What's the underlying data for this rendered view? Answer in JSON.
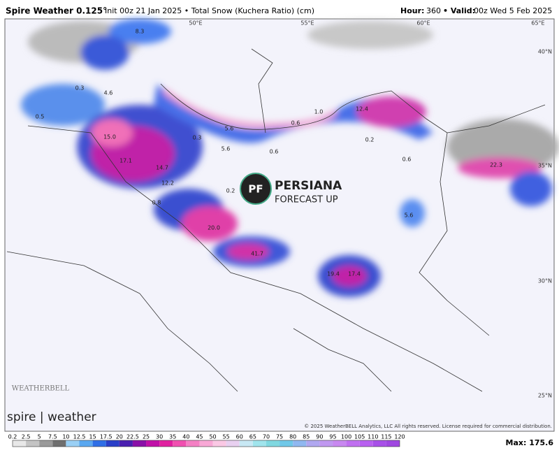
{
  "header": {
    "model": "Spire Weather 0.125°",
    "init": "Init 00z 21 Jan 2025 • Total Snow (Kuchera Ratio) (cm)",
    "hour_label": "Hour:",
    "hour": "360",
    "valid_label": "• Valid:",
    "valid": "00z Wed 5 Feb 2025"
  },
  "map": {
    "lon_labels": [
      "50°E",
      "55°E",
      "60°E",
      "65°E"
    ],
    "lat_labels": [
      "40°N",
      "35°N",
      "30°N",
      "25°N"
    ],
    "value_labels": [
      "8.3",
      "4.6",
      "0.3",
      "0.5",
      "15.0",
      "17.1",
      "14.7",
      "12.2",
      "0.3",
      "5.6",
      "5.6",
      "0.6",
      "0.6",
      "1.0",
      "12.4",
      "0.2",
      "0.6",
      "0.2",
      "0.8",
      "20.0",
      "41.7",
      "19.4",
      "17.4",
      "5.6",
      "22.3"
    ],
    "watermark": {
      "badge": "PF",
      "line1": "PERSIANA",
      "line2": "FORECAST UP"
    },
    "weatherbell": "WEATHERBELL",
    "spire": "spire | weather",
    "copyright": "© 2025 WeatherBELL Analytics, LLC All rights reserved. License required for commercial distribution."
  },
  "colorbar": {
    "ticks": [
      "0.2",
      "2.5",
      "5",
      "7.5",
      "10",
      "12.5",
      "15",
      "17.5",
      "20",
      "22.5",
      "25",
      "30",
      "35",
      "40",
      "45",
      "50",
      "55",
      "60",
      "65",
      "70",
      "75",
      "80",
      "85",
      "90",
      "95",
      "100",
      "105",
      "110",
      "115",
      "120"
    ],
    "colors": [
      "#e8e8e8",
      "#c4c4c4",
      "#9a9a9a",
      "#6f6f6f",
      "#9ad0f5",
      "#5aa8f0",
      "#2f6fe6",
      "#2a3fc8",
      "#4a1fb0",
      "#8a10a8",
      "#c010a8",
      "#e020a0",
      "#f050b0",
      "#f480c4",
      "#f8a8d6",
      "#fac8e4",
      "#e8d0f0",
      "#c8e8f4",
      "#a0e4ec",
      "#80d8e0",
      "#70c8e8",
      "#90b8f0",
      "#b0a8f0",
      "#c098f0",
      "#c888f0",
      "#c070f0",
      "#b860f0",
      "#a850e8",
      "#a048e0"
    ],
    "max": "Max: 175.6"
  }
}
